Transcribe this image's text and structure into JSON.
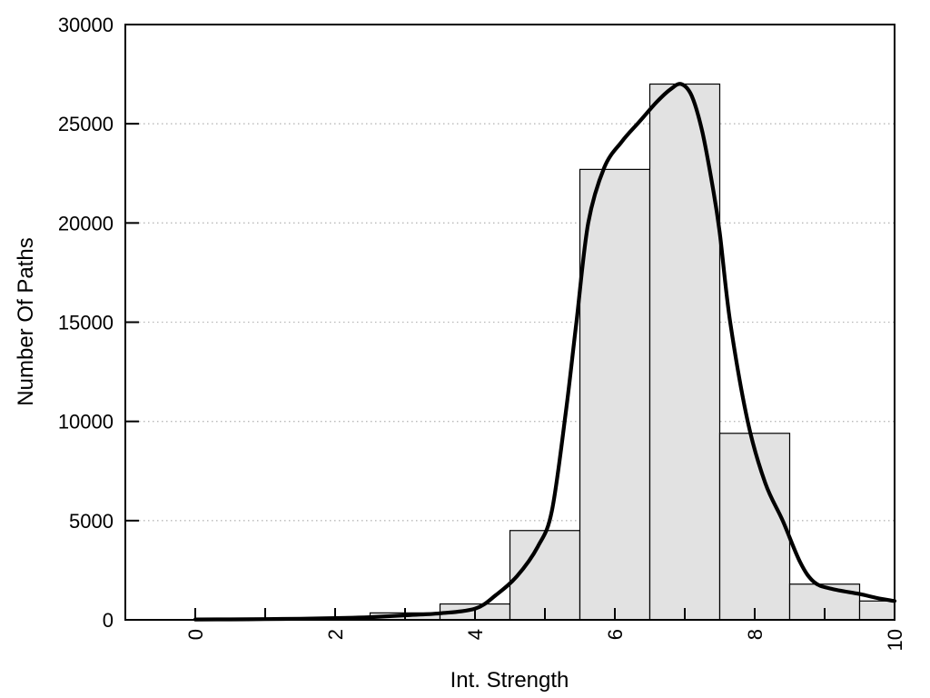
{
  "chart_data": {
    "type": "bar",
    "subtype": "histogram_with_density_curve",
    "title": "",
    "xlabel": "Int. Strength",
    "ylabel": "Number Of Paths",
    "xlim": [
      -1,
      10
    ],
    "ylim": [
      0,
      30000
    ],
    "x_ticks": [
      0,
      1,
      2,
      3,
      4,
      5,
      6,
      7,
      8,
      9,
      10
    ],
    "x_labeled_ticks": [
      0,
      2,
      4,
      6,
      8,
      10
    ],
    "x_tick_label_rotation_deg": -90,
    "y_ticks": [
      0,
      5000,
      10000,
      15000,
      20000,
      25000,
      30000
    ],
    "y_gridlines": [
      5000,
      10000,
      15000,
      20000,
      25000
    ],
    "grid_style": "horizontal-dotted",
    "legend_position": "none",
    "histogram": {
      "bin_width": 1,
      "bars": [
        {
          "x0": 2.5,
          "x1": 3.5,
          "center": 3,
          "count": 350
        },
        {
          "x0": 3.5,
          "x1": 4.5,
          "center": 4,
          "count": 800
        },
        {
          "x0": 4.5,
          "x1": 5.5,
          "center": 5,
          "count": 4500
        },
        {
          "x0": 5.5,
          "x1": 6.5,
          "center": 6,
          "count": 22700
        },
        {
          "x0": 6.5,
          "x1": 7.5,
          "center": 7,
          "count": 27000
        },
        {
          "x0": 7.5,
          "x1": 8.5,
          "center": 8,
          "count": 9400
        },
        {
          "x0": 8.5,
          "x1": 9.5,
          "center": 9,
          "count": 1800
        },
        {
          "x0": 9.5,
          "x1": 10.0,
          "center": 10,
          "count": 950
        }
      ]
    },
    "density_curve": {
      "name": "density-fit-curve",
      "peak": {
        "x": 6.95,
        "y": 27000
      },
      "points": [
        [
          0,
          20
        ],
        [
          0.5,
          25
        ],
        [
          1,
          35
        ],
        [
          1.5,
          55
        ],
        [
          2,
          85
        ],
        [
          2.5,
          135
        ],
        [
          3,
          230
        ],
        [
          3.5,
          330
        ],
        [
          4,
          560
        ],
        [
          4.3,
          1250
        ],
        [
          4.6,
          2200
        ],
        [
          4.9,
          3700
        ],
        [
          5.1,
          5500
        ],
        [
          5.3,
          10500
        ],
        [
          5.45,
          15000
        ],
        [
          5.62,
          20000
        ],
        [
          5.85,
          22800
        ],
        [
          6.1,
          24100
        ],
        [
          6.35,
          25100
        ],
        [
          6.6,
          26100
        ],
        [
          6.8,
          26750
        ],
        [
          6.95,
          27000
        ],
        [
          7.1,
          26400
        ],
        [
          7.25,
          24600
        ],
        [
          7.4,
          21800
        ],
        [
          7.5,
          19500
        ],
        [
          7.65,
          15000
        ],
        [
          7.9,
          10000
        ],
        [
          8.15,
          6900
        ],
        [
          8.4,
          5000
        ],
        [
          8.65,
          2900
        ],
        [
          8.85,
          1900
        ],
        [
          9.1,
          1560
        ],
        [
          9.5,
          1300
        ],
        [
          9.75,
          1100
        ],
        [
          10,
          950
        ]
      ]
    },
    "colors": {
      "background": "#ffffff",
      "bar_fill": "#e2e2e2",
      "bar_border": "#000000",
      "curve": "#000000",
      "axis": "#000000",
      "gridline": "#b8b8b8",
      "text": "#000000"
    }
  }
}
